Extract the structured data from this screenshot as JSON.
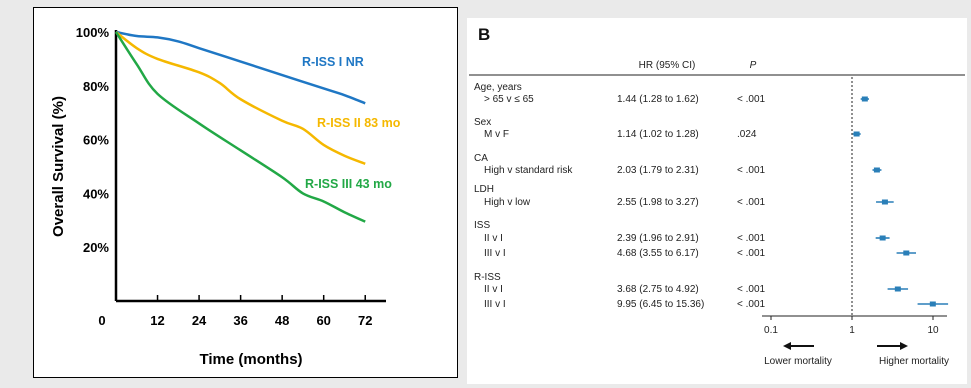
{
  "chart_data": [
    {
      "panel": "left",
      "type": "line",
      "title": "",
      "xlabel": "Time (months)",
      "ylabel": "Overall Survival (%)",
      "xlim": [
        0,
        78
      ],
      "ylim": [
        0,
        100
      ],
      "x_ticks": [
        "0",
        "12",
        "24",
        "36",
        "48",
        "60",
        "72"
      ],
      "y_ticks": [
        "20%",
        "40%",
        "60%",
        "80%",
        "100%"
      ],
      "series": [
        {
          "name": "R-ISS I NR",
          "color": "#1f77c4",
          "points": [
            [
              0,
              100
            ],
            [
              6,
              98.5
            ],
            [
              12,
              98
            ],
            [
              18,
              96.5
            ],
            [
              24,
              94
            ],
            [
              36,
              89
            ],
            [
              48,
              84
            ],
            [
              60,
              79
            ],
            [
              66,
              76.5
            ],
            [
              72,
              73.5
            ]
          ]
        },
        {
          "name": "R-ISS II 83 mo",
          "color": "#f5b800",
          "points": [
            [
              0,
              100
            ],
            [
              6,
              94
            ],
            [
              12,
              90
            ],
            [
              24,
              85
            ],
            [
              30,
              81
            ],
            [
              36,
              75
            ],
            [
              48,
              67
            ],
            [
              54,
              64
            ],
            [
              60,
              58
            ],
            [
              66,
              54
            ],
            [
              72,
              51
            ]
          ]
        },
        {
          "name": "R-ISS III 43 mo",
          "color": "#22a846",
          "points": [
            [
              0,
              100
            ],
            [
              6,
              88
            ],
            [
              12,
              77
            ],
            [
              24,
              66
            ],
            [
              36,
              56
            ],
            [
              48,
              46
            ],
            [
              54,
              40
            ],
            [
              60,
              37
            ],
            [
              66,
              33
            ],
            [
              72,
              29.5
            ]
          ]
        }
      ]
    },
    {
      "panel": "right",
      "type": "forest",
      "panel_label": "B",
      "header": {
        "hr": "HR (95% CI)",
        "p": "P"
      },
      "x_scale": "log",
      "x_ticks": [
        "0.1",
        "1",
        "10"
      ],
      "reference_line": 1,
      "bottom_left": "Lower mortality",
      "bottom_right": "Higher mortality",
      "groups": [
        {
          "label": "Age, years",
          "rows": [
            {
              "label": "> 65 v ≤ 65",
              "hr_text": "1.44 (1.28 to 1.62)",
              "p": "< .001",
              "hr": 1.44,
              "lo": 1.28,
              "hi": 1.62
            }
          ]
        },
        {
          "label": "Sex",
          "rows": [
            {
              "label": "M v F",
              "hr_text": "1.14 (1.02 to 1.28)",
              "p": ".024",
              "hr": 1.14,
              "lo": 1.02,
              "hi": 1.28
            }
          ]
        },
        {
          "label": "CA",
          "rows": [
            {
              "label": "High v standard risk",
              "hr_text": "2.03 (1.79 to 2.31)",
              "p": "< .001",
              "hr": 2.03,
              "lo": 1.79,
              "hi": 2.31
            }
          ]
        },
        {
          "label": "LDH",
          "rows": [
            {
              "label": "High v low",
              "hr_text": "2.55 (1.98 to 3.27)",
              "p": "< .001",
              "hr": 2.55,
              "lo": 1.98,
              "hi": 3.27
            }
          ]
        },
        {
          "label": "ISS",
          "rows": [
            {
              "label": "II v I",
              "hr_text": "2.39 (1.96 to 2.91)",
              "p": "< .001",
              "hr": 2.39,
              "lo": 1.96,
              "hi": 2.91
            },
            {
              "label": "III v I",
              "hr_text": "4.68 (3.55 to 6.17)",
              "p": "< .001",
              "hr": 4.68,
              "lo": 3.55,
              "hi": 6.17
            }
          ]
        },
        {
          "label": "R-ISS",
          "rows": [
            {
              "label": "II v I",
              "hr_text": "3.68 (2.75 to 4.92)",
              "p": "< .001",
              "hr": 3.68,
              "lo": 2.75,
              "hi": 4.92
            },
            {
              "label": "III v I",
              "hr_text": "9.95 (6.45 to 15.36)",
              "p": "< .001",
              "hr": 9.95,
              "lo": 6.45,
              "hi": 15.36
            }
          ]
        }
      ],
      "colors": {
        "marker": "#2a7fb8",
        "text": "#222222"
      }
    }
  ]
}
